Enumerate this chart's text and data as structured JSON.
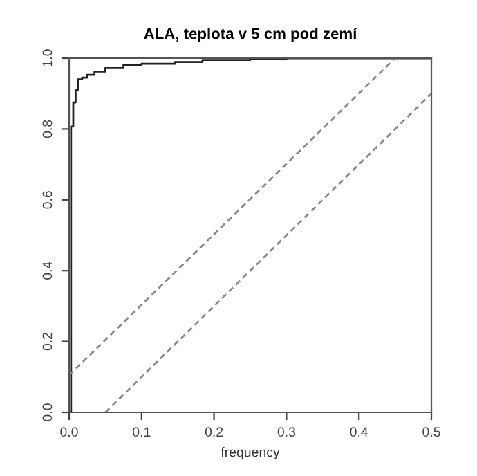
{
  "chart_data": {
    "type": "step",
    "title": "ALA, teplota v 5 cm pod zemí",
    "xlabel": "frequency",
    "xlim": [
      0,
      0.5
    ],
    "ylim": [
      0,
      1
    ],
    "xticks": [
      {
        "value": 0,
        "label": "0.0"
      },
      0.1,
      0.2,
      0.3,
      0.4,
      0.5
    ],
    "yticks": [
      {
        "value": 0,
        "label": "0.0"
      },
      0.2,
      0.4,
      0.6,
      0.8,
      {
        "value": 1,
        "label": "1.0"
      }
    ],
    "grid": false,
    "series": [
      {
        "color": "#222222",
        "line_style": "solid",
        "x": [
          0,
          0.0027,
          0.0057,
          0.009,
          0.012,
          0.018,
          0.025,
          0.035,
          0.05,
          0.075,
          0.1,
          0.146,
          0.184,
          0.25,
          0.3,
          0.5
        ],
        "values": [
          0,
          0.807,
          0.875,
          0.91,
          0.94,
          0.945,
          0.953,
          0.962,
          0.972,
          0.981,
          0.984,
          0.989,
          0.995,
          0.998,
          1.0,
          1.0
        ]
      },
      {
        "type": "line",
        "color": "#888888",
        "line_style": "dashed",
        "x": [
          0,
          0.45
        ],
        "values": [
          0.105,
          1.0
        ]
      },
      {
        "type": "line",
        "color": "#888888",
        "line_style": "dashed",
        "x": [
          0.05,
          0.5
        ],
        "values": [
          0,
          0.9
        ]
      }
    ]
  }
}
